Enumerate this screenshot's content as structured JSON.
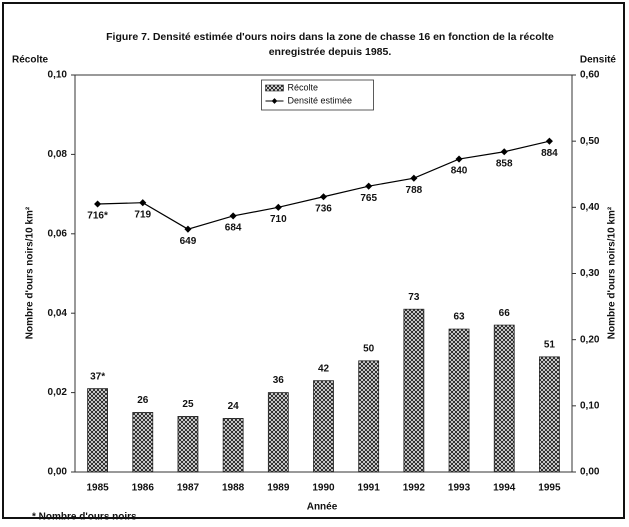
{
  "chart_data": {
    "type": "bar_line",
    "title": "Figure 7. Densité estimée d'ours noirs dans la zone de chasse 16 en fonction de la récolte enregistrée depuis 1985.",
    "y_label": "Récolte",
    "y2_label": "Densité",
    "y_title": "Nombre d'ours noirs/10 km²",
    "y2_title": "Nombre d'ours noirs/10 km²",
    "x_title": "Année",
    "footnote": "* Nombre d'ours noirs",
    "categories": [
      "1985",
      "1986",
      "1987",
      "1988",
      "1989",
      "1990",
      "1991",
      "1992",
      "1993",
      "1994",
      "1995"
    ],
    "series": [
      {
        "name": "Récolte",
        "type": "bar",
        "color": "#222222",
        "values": [
          0.021,
          0.015,
          0.014,
          0.0135,
          0.02,
          0.023,
          0.028,
          0.041,
          0.036,
          0.037,
          0.029
        ]
      },
      {
        "name": "Densité estimée",
        "type": "line",
        "axis": "y2",
        "color": "#000000",
        "values": [
          0.405,
          0.407,
          0.367,
          0.387,
          0.4,
          0.416,
          0.432,
          0.444,
          0.473,
          0.484,
          0.5
        ]
      }
    ],
    "annotations": {
      "bars": [
        "37*",
        "26",
        "25",
        "24",
        "36",
        "42",
        "50",
        "73",
        "63",
        "66",
        "51"
      ],
      "line": [
        "716*",
        "719",
        "649",
        "684",
        "710",
        "736",
        "765",
        "788",
        "840",
        "858",
        "884"
      ]
    },
    "ylim": [
      0,
      0.1
    ],
    "yticks": [
      {
        "value": 0,
        "label": "0,00"
      },
      {
        "value": 0.02,
        "label": "0,02"
      },
      {
        "value": 0.04,
        "label": "0,04"
      },
      {
        "value": 0.06,
        "label": "0,06"
      },
      {
        "value": 0.08,
        "label": "0,08"
      },
      {
        "value": 0.1,
        "label": "0,10"
      }
    ],
    "y2lim": [
      0,
      0.6
    ],
    "y2ticks": [
      {
        "value": 0,
        "label": "0,00"
      },
      {
        "value": 0.1,
        "label": "0,10"
      },
      {
        "value": 0.2,
        "label": "0,20"
      },
      {
        "value": 0.3,
        "label": "0,30"
      },
      {
        "value": 0.4,
        "label": "0,40"
      },
      {
        "value": 0.5,
        "label": "0,50"
      },
      {
        "value": 0.6,
        "label": "0,60"
      }
    ],
    "legend": "top-center"
  }
}
